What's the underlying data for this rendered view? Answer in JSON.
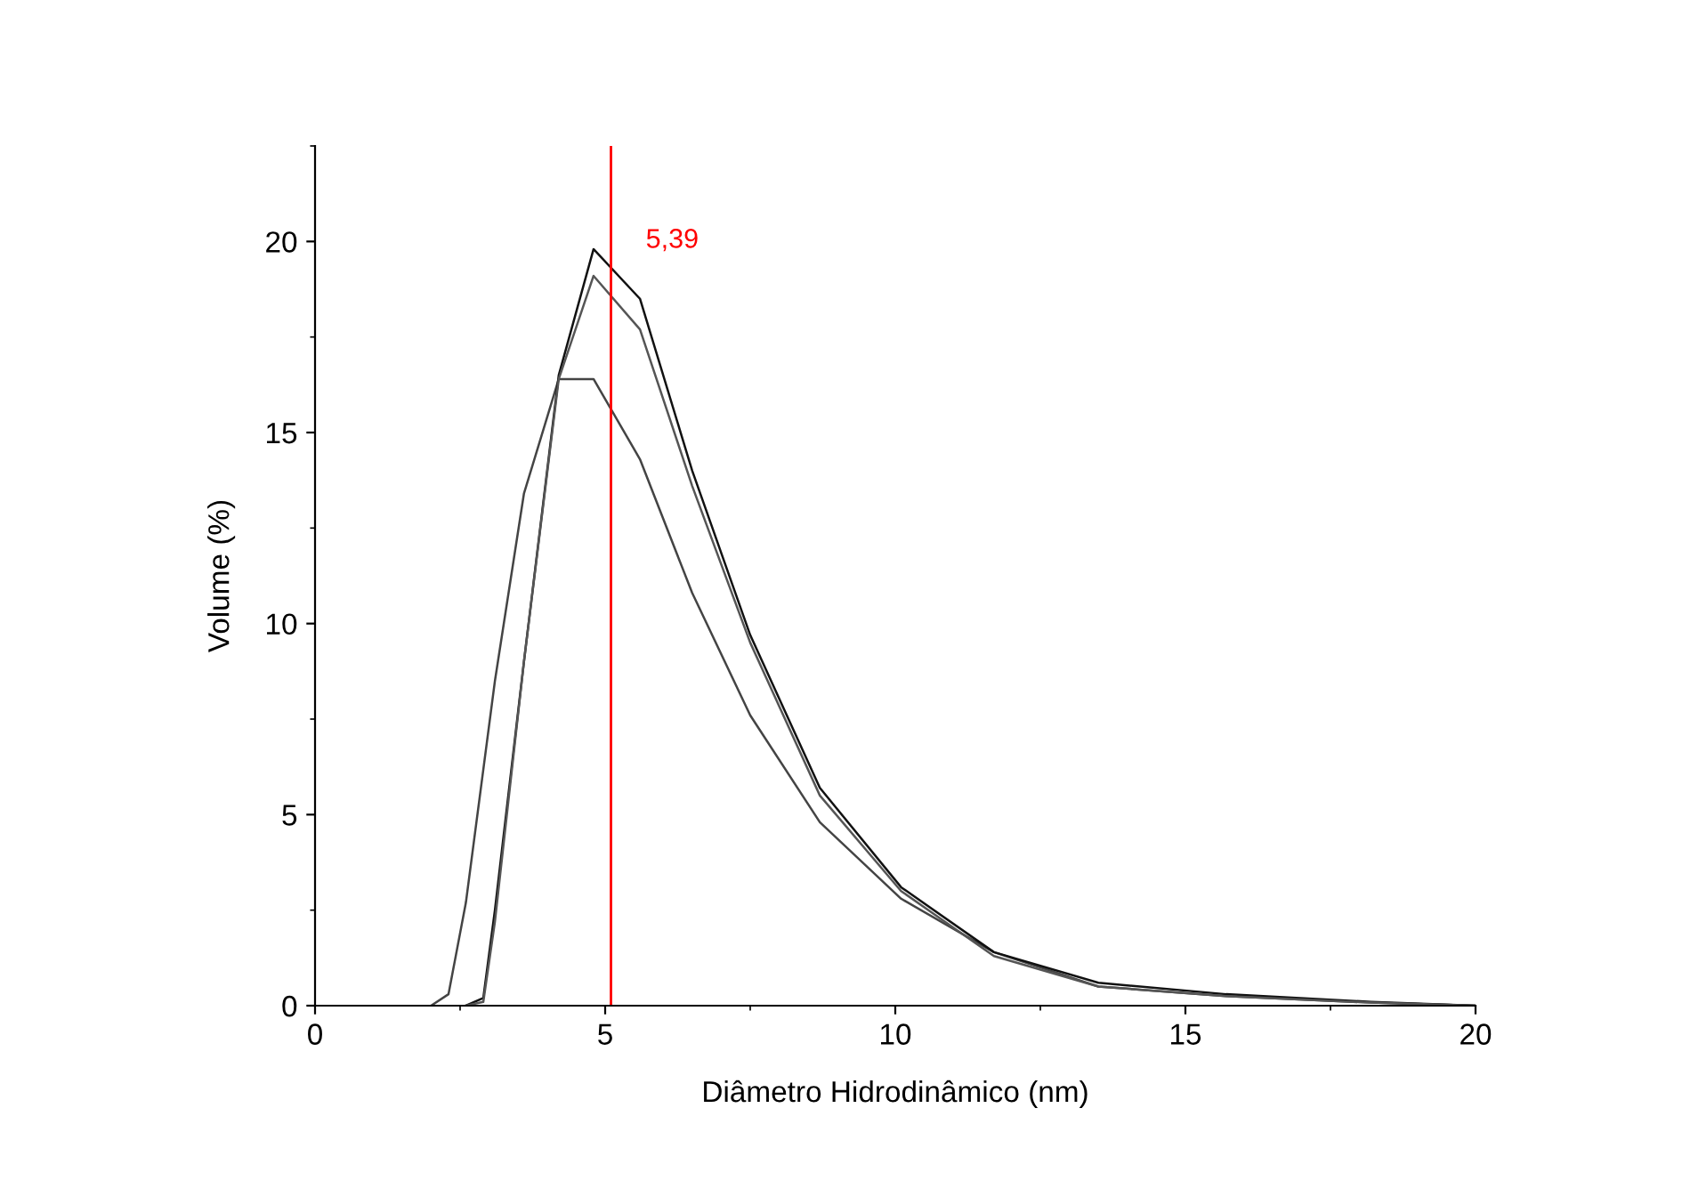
{
  "chart_data": {
    "type": "line",
    "xlabel": "Diâmetro Hidrodinâmico (nm)",
    "ylabel": "Volume (%)",
    "annotations": [
      "5,39"
    ],
    "xlim": [
      0,
      20
    ],
    "ylim": [
      0,
      22.5
    ],
    "xticks": [
      0,
      5,
      10,
      15,
      20
    ],
    "yticks": [
      0,
      5,
      10,
      15,
      20
    ],
    "series": [
      {
        "color": "#444444",
        "x": [
          2.0,
          2.3,
          2.6,
          3.1,
          3.6,
          4.2,
          4.8,
          5.6,
          6.5,
          7.5,
          8.7,
          10.1,
          11.7,
          13.5,
          15.7,
          18.2,
          20
        ],
        "values": [
          0,
          0.3,
          2.7,
          8.5,
          13.4,
          16.4,
          16.4,
          14.3,
          10.8,
          7.6,
          4.8,
          2.8,
          1.4,
          0.5,
          0.25,
          0.08,
          0
        ]
      },
      {
        "color": "#111111",
        "x": [
          2.6,
          2.9,
          3.1,
          3.6,
          4.2,
          4.8,
          5.6,
          6.5,
          7.5,
          8.7,
          10.1,
          11.7,
          13.5,
          15.7,
          18.2,
          20
        ],
        "values": [
          0,
          0.2,
          2.5,
          9,
          16.5,
          19.8,
          18.5,
          14,
          9.7,
          5.7,
          3.1,
          1.4,
          0.6,
          0.3,
          0.1,
          0
        ]
      },
      {
        "color": "#555555",
        "x": [
          2.6,
          2.9,
          3.1,
          3.6,
          4.2,
          4.8,
          5.6,
          6.5,
          7.5,
          8.7,
          10.1,
          11.7,
          13.5,
          15.7,
          18.2,
          20
        ],
        "values": [
          0,
          0.1,
          2.2,
          9,
          16.4,
          19.1,
          17.7,
          13.6,
          9.5,
          5.5,
          3.0,
          1.3,
          0.5,
          0.25,
          0.08,
          0
        ]
      }
    ],
    "ref_lines": [
      {
        "axis": "x",
        "value": 5.1,
        "color": "#ff0000"
      }
    ],
    "grid": false,
    "marker": "none",
    "line_style": "solid"
  }
}
